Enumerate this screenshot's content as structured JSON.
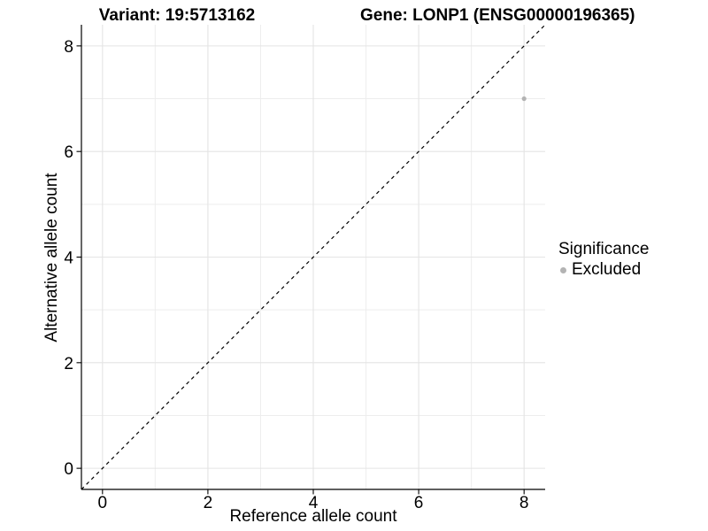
{
  "titles": {
    "variant": "Variant: 19:5713162",
    "gene": "Gene: LONP1 (ENSG00000196365)"
  },
  "axes": {
    "x": {
      "label": "Reference allele count",
      "tick_labels": [
        "0",
        "2",
        "4",
        "6",
        "8"
      ],
      "tick_values": [
        0,
        2,
        4,
        6,
        8
      ],
      "minor_values": [
        1,
        3,
        5,
        7
      ],
      "range": [
        -0.4,
        8.4
      ]
    },
    "y": {
      "label": "Alternative allele count",
      "tick_labels": [
        "0",
        "2",
        "4",
        "6",
        "8"
      ],
      "tick_values": [
        0,
        2,
        4,
        6,
        8
      ],
      "minor_values": [
        1,
        3,
        5,
        7
      ],
      "range": [
        -0.4,
        8.4
      ]
    }
  },
  "legend": {
    "title": "Significance",
    "position": "right",
    "items": [
      {
        "label": "Excluded",
        "marker": "circle",
        "color": "#b3b3b3"
      }
    ]
  },
  "chart_data": {
    "type": "scatter",
    "title": "Variant: 19:5713162    Gene: LONP1 (ENSG00000196365)",
    "xlabel": "Reference allele count",
    "ylabel": "Alternative allele count",
    "xlim": [
      -0.4,
      8.4
    ],
    "ylim": [
      -0.4,
      8.4
    ],
    "x_ticks": [
      0,
      2,
      4,
      6,
      8
    ],
    "y_ticks": [
      0,
      2,
      4,
      6,
      8
    ],
    "x_minor": [
      1,
      3,
      5,
      7
    ],
    "y_minor": [
      1,
      3,
      5,
      7
    ],
    "grid": "major and minor gridlines on, light gray on white panel",
    "legend_position": "right",
    "series": [
      {
        "name": "Excluded",
        "color": "#b3b3b3",
        "points": [
          {
            "x": 8,
            "y": 7
          }
        ]
      }
    ],
    "reference_line": {
      "equation": "y = x",
      "style": "dashed",
      "color": "#000000"
    }
  },
  "colors": {
    "background": "#ffffff",
    "grid_major": "#e4e4e4",
    "grid_minor": "#ededed",
    "axis_line": "#000000",
    "tick_mark": "#000000",
    "text": "#000000",
    "point": "#b3b3b3",
    "reference_line": "#000000"
  }
}
